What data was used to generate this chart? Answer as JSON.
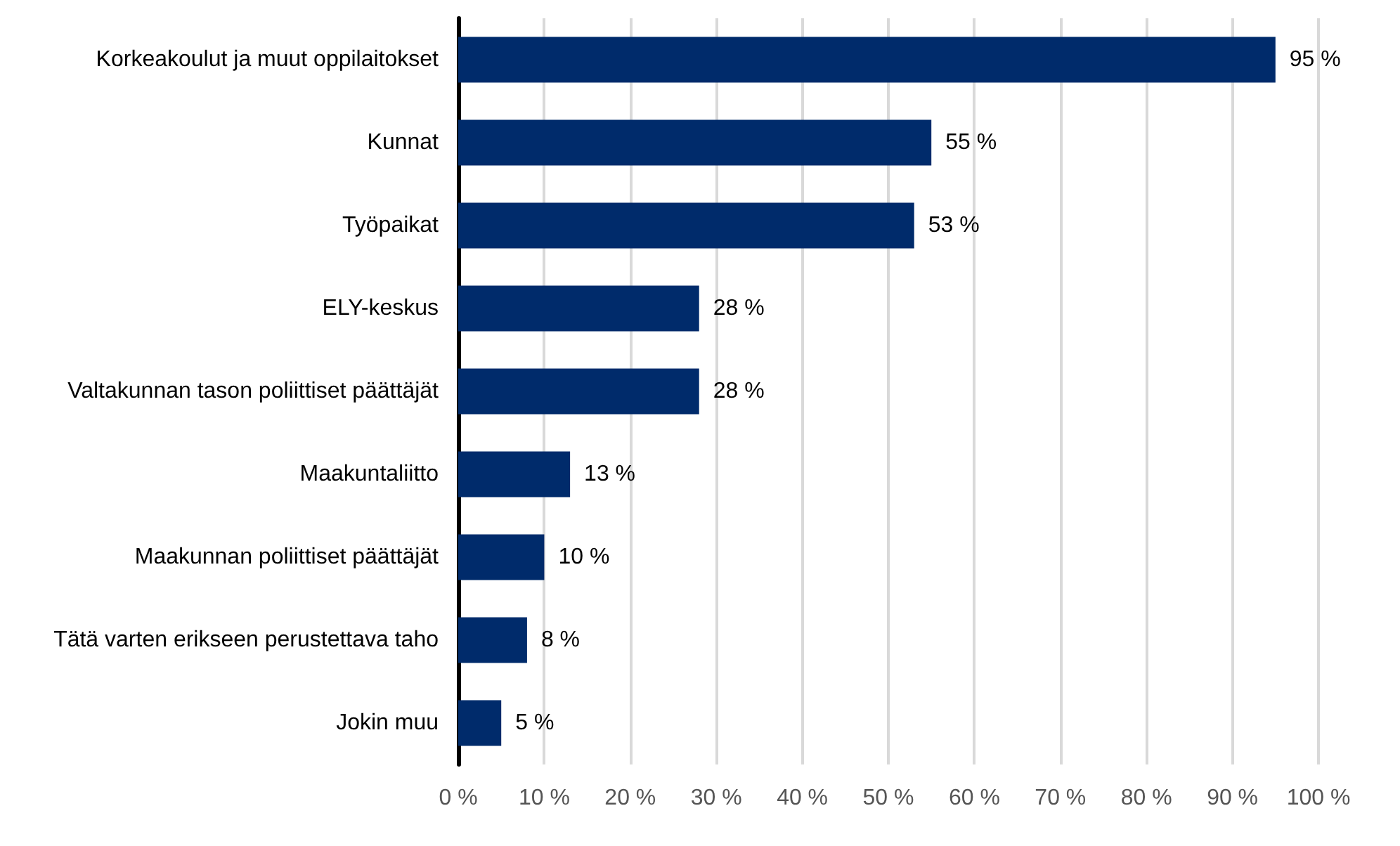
{
  "chart_data": {
    "type": "bar",
    "orientation": "horizontal",
    "categories": [
      "Korkeakoulut ja muut oppilaitokset",
      "Kunnat",
      "Työpaikat",
      "ELY-keskus",
      "Valtakunnan tason poliittiset päättäjät",
      "Maakuntaliitto",
      "Maakunnan poliittiset päättäjät",
      "Tätä varten erikseen perustettava taho",
      "Jokin muu"
    ],
    "values": [
      95,
      55,
      53,
      28,
      28,
      13,
      10,
      8,
      5
    ],
    "value_labels": [
      "95 %",
      "55 %",
      "53 %",
      "28 %",
      "28 %",
      "13 %",
      "10 %",
      "8 %",
      "5 %"
    ],
    "color": "#002b6b",
    "xlim": [
      0,
      100
    ],
    "xticks": [
      {
        "value": 0,
        "label": "0 %"
      },
      {
        "value": 10,
        "label": "10 %"
      },
      {
        "value": 20,
        "label": "20 %"
      },
      {
        "value": 30,
        "label": "30 %"
      },
      {
        "value": 40,
        "label": "40 %"
      },
      {
        "value": 50,
        "label": "50 %"
      },
      {
        "value": 60,
        "label": "60 %"
      },
      {
        "value": 70,
        "label": "70 %"
      },
      {
        "value": 80,
        "label": "80 %"
      },
      {
        "value": 90,
        "label": "90 %"
      },
      {
        "value": 100,
        "label": "100 %"
      }
    ],
    "grid": "x"
  }
}
